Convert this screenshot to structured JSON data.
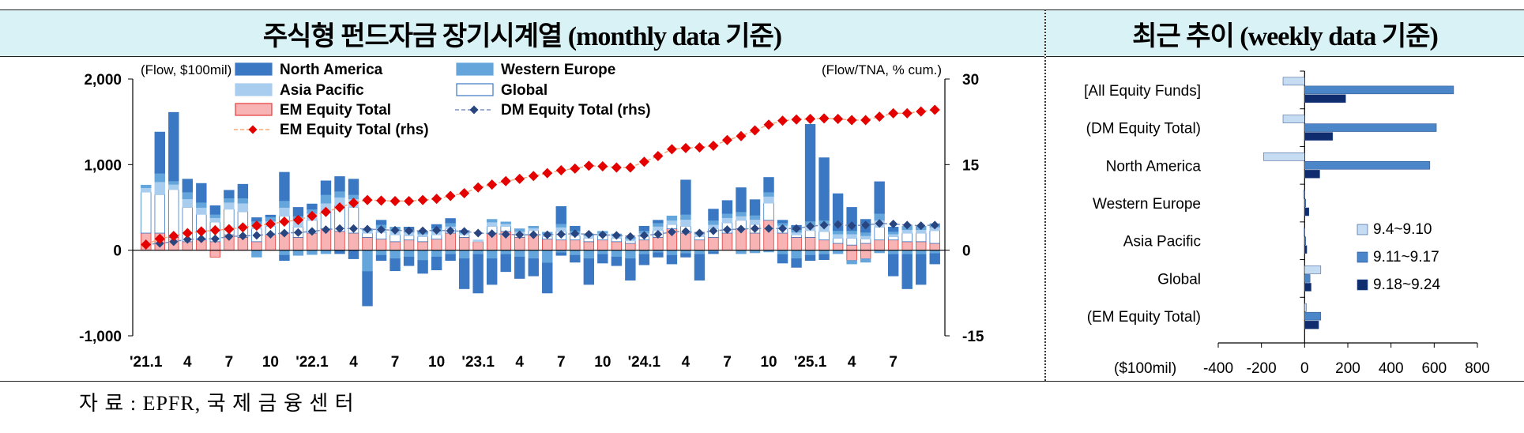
{
  "headers": {
    "left": "주식형 펀드자금 장기시계열 (monthly data 기준)",
    "right": "최근 추이 (weekly data 기준)"
  },
  "source": "자 료 : EPFR, 국 제 금 융 센 터",
  "colors": {
    "north_america": "#3b78c3",
    "western_europe": "#64a6dc",
    "asia_pacific": "#a9cdee",
    "global": "#ffffff",
    "global_border": "#3b78c3",
    "em_equity": "#f8b4b4",
    "em_border": "#e43b3b",
    "em_line": "#e50000",
    "dm_line": "#29457f",
    "week1": "#c5dcf2",
    "week2": "#4a86c8",
    "week3": "#0f2d6e",
    "header_bg": "#d8f2f6"
  },
  "chart_data": [
    {
      "type": "bar",
      "subtype": "stacked bar with two lines on secondary axis",
      "ylabel_left": "(Flow, $100mil)",
      "ylabel_right": "(Flow/TNA, % cum.)",
      "ylim": [
        -1000,
        2000
      ],
      "y2lim": [
        -15,
        30
      ],
      "yticks": [
        "2,000",
        "1,000",
        "0",
        "-1,000"
      ],
      "y2ticks": [
        "30",
        "15",
        "0",
        "-15"
      ],
      "x_tick_labels": [
        {
          "i": 0,
          "label": "'21.1"
        },
        {
          "i": 3,
          "label": "4"
        },
        {
          "i": 6,
          "label": "7"
        },
        {
          "i": 9,
          "label": "10"
        },
        {
          "i": 12,
          "label": "'22.1"
        },
        {
          "i": 15,
          "label": "4"
        },
        {
          "i": 18,
          "label": "7"
        },
        {
          "i": 21,
          "label": "10"
        },
        {
          "i": 24,
          "label": "'23.1"
        },
        {
          "i": 27,
          "label": "4"
        },
        {
          "i": 30,
          "label": "7"
        },
        {
          "i": 33,
          "label": "10"
        },
        {
          "i": 36,
          "label": "'24.1"
        },
        {
          "i": 39,
          "label": "4"
        },
        {
          "i": 42,
          "label": "7"
        },
        {
          "i": 45,
          "label": "10"
        },
        {
          "i": 48,
          "label": "'25.1"
        },
        {
          "i": 51,
          "label": "4"
        },
        {
          "i": 54,
          "label": "7"
        }
      ],
      "legend": [
        {
          "key": "north_america",
          "label": "North America",
          "kind": "bar"
        },
        {
          "key": "western_europe",
          "label": "Western Europe",
          "kind": "bar"
        },
        {
          "key": "asia_pacific",
          "label": "Asia Pacific",
          "kind": "bar"
        },
        {
          "key": "global",
          "label": "Global",
          "kind": "bar"
        },
        {
          "key": "em_equity",
          "label": "EM Equity Total",
          "kind": "bar"
        },
        {
          "key": "dm_line",
          "label": "DM Equity Total (rhs)",
          "kind": "line-diamond"
        },
        {
          "key": "em_line",
          "label": "EM Equity Total (rhs)",
          "kind": "line-diamond"
        }
      ],
      "bars": [
        {
          "em": 200,
          "global": 480,
          "ap": 50,
          "we": 30,
          "na": -280
        },
        {
          "em": 200,
          "global": 450,
          "ap": 150,
          "we": 100,
          "na": 480
        },
        {
          "em": 150,
          "global": 560,
          "ap": 60,
          "we": 40,
          "na": 800
        },
        {
          "em": 100,
          "global": 400,
          "ap": 100,
          "we": 80,
          "na": 150
        },
        {
          "em": 120,
          "global": 300,
          "ap": 80,
          "we": 60,
          "na": 220
        },
        {
          "em": 100,
          "global": 230,
          "ap": 50,
          "we": 40,
          "na": 100,
          "em_neg": -80
        },
        {
          "em": 180,
          "global": 300,
          "ap": 80,
          "we": 50,
          "na": 90
        },
        {
          "em": 150,
          "global": 300,
          "ap": 100,
          "we": 60,
          "na": 160
        },
        {
          "em": 100,
          "global": 150,
          "ap": 50,
          "we": 40,
          "na": 40,
          "we_neg": -80
        },
        {
          "em": 180,
          "global": 100,
          "ap": 60,
          "we": 50,
          "na": 20
        },
        {
          "em": 200,
          "global": 200,
          "ap": 100,
          "we": 80,
          "na": 330,
          "we_neg": -60,
          "na_neg": -60
        },
        {
          "em": 150,
          "global": 120,
          "ap": 80,
          "we": 50,
          "na": 100,
          "we_neg": -60
        },
        {
          "em": 200,
          "global": 150,
          "ap": 80,
          "we": 50,
          "na": 60,
          "we_neg": -50
        },
        {
          "em": 250,
          "global": 200,
          "ap": 100,
          "we": 100,
          "na": 160,
          "we_neg": -40
        },
        {
          "em": 220,
          "global": 300,
          "ap": 100,
          "we": 70,
          "na": 170,
          "na_neg": -40
        },
        {
          "em": 200,
          "global": 300,
          "ap": 100,
          "we": 50,
          "na": 180,
          "na_neg": -100
        },
        {
          "em": 150,
          "global": 50,
          "ap": 30,
          "we": 20,
          "na": 0,
          "we_neg": -250,
          "na_neg": -400
        },
        {
          "em": 130,
          "global": 80,
          "ap": 50,
          "we": 40,
          "na": 50,
          "we_neg": -60,
          "na_neg": -60
        },
        {
          "em": 100,
          "global": 80,
          "ap": 50,
          "we": 40,
          "na": 0,
          "we_neg": -100,
          "na_neg": -140
        },
        {
          "em": 120,
          "global": 50,
          "ap": 40,
          "we": 30,
          "na": 30,
          "we_neg": -80,
          "na_neg": -100
        },
        {
          "em": 100,
          "global": 60,
          "ap": 30,
          "we": 20,
          "na": 10,
          "we_neg": -120,
          "na_neg": -150
        },
        {
          "em": 130,
          "global": 50,
          "ap": 40,
          "we": 40,
          "na": 40,
          "we_neg": -80,
          "na_neg": -150
        },
        {
          "em": 200,
          "global": 50,
          "ap": 30,
          "we": 40,
          "na": 50,
          "we_neg": -50,
          "na_neg": -70
        },
        {
          "em": 150,
          "global": 30,
          "ap": 20,
          "we": 20,
          "na": 10,
          "we_neg": -100,
          "na_neg": -350
        },
        {
          "em": 100,
          "global": 0,
          "ap": 20,
          "we": 0,
          "na": 0,
          "we_neg": -50,
          "na_neg": -450
        },
        {
          "em": 200,
          "global": 80,
          "ap": 50,
          "we": 30,
          "na": 0,
          "we_neg": -100,
          "na_neg": -300
        },
        {
          "em": 220,
          "global": 60,
          "ap": 30,
          "we": 20,
          "na": 0,
          "we_neg": -50,
          "na_neg": -200
        },
        {
          "em": 150,
          "global": 40,
          "ap": 30,
          "we": 30,
          "na": 0,
          "we_neg": -80,
          "na_neg": -250
        },
        {
          "em": 180,
          "global": 50,
          "ap": 30,
          "we": 20,
          "na": 0,
          "we_neg": -100,
          "na_neg": -200
        },
        {
          "em": 130,
          "global": 30,
          "ap": 30,
          "we": 20,
          "na": 0,
          "we_neg": -150,
          "na_neg": -350
        },
        {
          "em": 120,
          "global": 100,
          "ap": 50,
          "we": 40,
          "na": 200,
          "we_neg": -30,
          "na_neg": -30
        },
        {
          "em": 120,
          "global": 50,
          "ap": 30,
          "we": 30,
          "na": 50,
          "we_neg": -60,
          "na_neg": -80
        },
        {
          "em": 100,
          "global": 40,
          "ap": 30,
          "we": 20,
          "na": 0,
          "we_neg": -100,
          "na_neg": -300
        },
        {
          "em": 120,
          "global": 50,
          "ap": 30,
          "we": 20,
          "na": 0,
          "we_neg": -50,
          "na_neg": -100
        },
        {
          "em": 100,
          "global": 40,
          "ap": 30,
          "we": 20,
          "na": 0,
          "we_neg": -80,
          "na_neg": -100
        },
        {
          "em": 80,
          "global": 30,
          "ap": 20,
          "we": 20,
          "na": 0,
          "we_neg": -100,
          "na_neg": -250
        },
        {
          "em": 120,
          "global": 40,
          "ap": 40,
          "we": 30,
          "na": 50,
          "we_neg": -50,
          "na_neg": -120
        },
        {
          "em": 150,
          "global": 80,
          "ap": 50,
          "we": 40,
          "na": 30,
          "we_neg": -30,
          "na_neg": -50
        },
        {
          "em": 250,
          "global": 50,
          "ap": 50,
          "we": 50,
          "na": 0,
          "we_neg": -60,
          "na_neg": -100
        },
        {
          "em": 200,
          "global": 80,
          "ap": 80,
          "we": 60,
          "na": 400,
          "we_neg": -40,
          "na_neg": -40
        },
        {
          "em": 120,
          "global": 40,
          "ap": 30,
          "we": 20,
          "na": 0,
          "we_neg": -50,
          "na_neg": -300
        },
        {
          "em": 150,
          "global": 100,
          "ap": 50,
          "we": 50,
          "na": 130,
          "we_neg": -20,
          "na_neg": -20
        },
        {
          "em": 200,
          "global": 120,
          "ap": 60,
          "we": 50,
          "na": 150
        },
        {
          "em": 250,
          "global": 100,
          "ap": 50,
          "we": 50,
          "na": 280,
          "we_neg": -40
        },
        {
          "em": 200,
          "global": 100,
          "ap": 60,
          "we": 50,
          "na": 180,
          "we_neg": -30
        },
        {
          "em": 350,
          "global": 200,
          "ap": 80,
          "we": 50,
          "na": 170,
          "we_neg": -20
        },
        {
          "em": 200,
          "global": 50,
          "ap": 40,
          "we": 30,
          "na": 30,
          "we_neg": -50,
          "na_neg": -100
        },
        {
          "em": 150,
          "global": 30,
          "ap": 30,
          "we": 30,
          "na": 50,
          "we_neg": -100,
          "na_neg": -100
        },
        {
          "em": 150,
          "global": 80,
          "ap": 60,
          "we": 50,
          "na": 1130,
          "we_neg": -60,
          "na_neg": -60
        },
        {
          "em": 120,
          "global": 100,
          "ap": 80,
          "we": 50,
          "na": 730,
          "we_neg": -50,
          "na_neg": -60
        },
        {
          "em": 80,
          "global": 60,
          "ap": 50,
          "we": 40,
          "na": 430,
          "we_neg": -40
        },
        {
          "em": 60,
          "global": 80,
          "ap": 50,
          "we": 40,
          "na": 270,
          "em_neg": -120,
          "we_neg": -40
        },
        {
          "em": 80,
          "global": 50,
          "ap": 40,
          "we": 40,
          "na": 150,
          "em_neg": -100,
          "we_neg": -40
        },
        {
          "em": 120,
          "global": 150,
          "ap": 80,
          "we": 80,
          "na": 370,
          "we_neg": -30
        },
        {
          "em": 120,
          "global": 40,
          "ap": 30,
          "we": 30,
          "na": 50,
          "we_neg": -50,
          "na_neg": -250
        },
        {
          "em": 100,
          "global": 100,
          "ap": 40,
          "we": 40,
          "na": 0,
          "we_neg": -50,
          "na_neg": -400
        },
        {
          "em": 100,
          "global": 100,
          "ap": 40,
          "we": 40,
          "na": 0,
          "we_neg": -50,
          "na_neg": -350
        },
        {
          "em": 80,
          "global": 150,
          "ap": 40,
          "we": 40,
          "na": 0,
          "we_neg": -40,
          "na_neg": -120
        }
      ],
      "em_line_rhs": [
        1,
        2,
        2.5,
        3,
        3.3,
        3.5,
        3.7,
        4,
        4.3,
        4.6,
        5,
        5.3,
        6,
        6.7,
        7.5,
        8.3,
        8.8,
        8.7,
        8.6,
        8.6,
        8.8,
        9,
        9.5,
        10,
        11,
        11.5,
        12.1,
        12.5,
        13,
        13.5,
        14,
        14.3,
        14.8,
        14.7,
        14.5,
        14.5,
        15.5,
        16.5,
        17.7,
        17.9,
        18,
        18.3,
        19.3,
        20,
        21,
        22,
        22.7,
        22.9,
        23,
        23.1,
        23,
        22.8,
        22.8,
        23.4,
        24,
        24,
        24.3,
        24.6
      ],
      "dm_line_rhs": [
        1,
        1.2,
        1.5,
        1.9,
        2,
        2,
        2.4,
        2.5,
        2.6,
        2.8,
        3,
        3.1,
        3.3,
        3.6,
        3.8,
        3.8,
        3.7,
        3.6,
        3.5,
        3.4,
        3.4,
        3.5,
        3.4,
        3.3,
        3,
        2.9,
        2.8,
        2.7,
        2.7,
        2.7,
        2.8,
        2.9,
        2.8,
        2.7,
        2.6,
        2.4,
        2.6,
        2.8,
        3.2,
        3.3,
        3.0,
        3.4,
        3.6,
        3.7,
        3.8,
        3.8,
        3.8,
        3.8,
        4.2,
        4.4,
        4.5,
        4.3,
        4.4,
        4.7,
        4.6,
        4.4,
        4.3,
        4.4
      ]
    },
    {
      "type": "bar",
      "orientation": "horizontal",
      "xlabel": "($100mil)",
      "xlim": [
        -400,
        800
      ],
      "xticks": [
        -400,
        -200,
        0,
        200,
        400,
        600,
        800
      ],
      "categories": [
        "[All Equity Funds]",
        "(DM Equity Total)",
        "North America",
        "Western Europe",
        "Asia Pacific",
        "Global",
        "(EM Equity Total)"
      ],
      "series": [
        {
          "name": "9.4~9.10",
          "values": [
            -100,
            -100,
            -190,
            -5,
            -3,
            75,
            8
          ]
        },
        {
          "name": "9.11~9.17",
          "values": [
            690,
            610,
            580,
            5,
            5,
            25,
            75
          ]
        },
        {
          "name": "9.18~9.24",
          "values": [
            190,
            130,
            70,
            20,
            10,
            30,
            65
          ]
        }
      ]
    }
  ]
}
